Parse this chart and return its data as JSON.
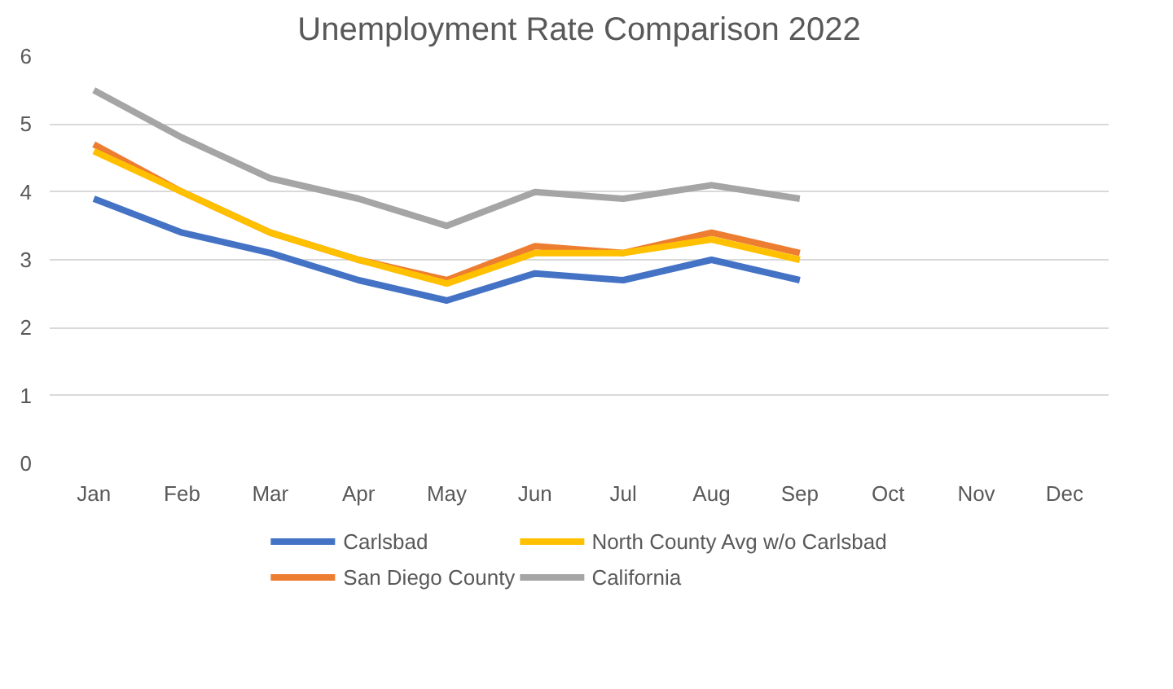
{
  "chart_data": {
    "type": "line",
    "title": "Unemployment Rate Comparison 2022",
    "categories": [
      "Jan",
      "Feb",
      "Mar",
      "Apr",
      "May",
      "Jun",
      "Jul",
      "Aug",
      "Sep",
      "Oct",
      "Nov",
      "Dec"
    ],
    "series": [
      {
        "name": "Carlsbad",
        "color": "#4472c4",
        "values": [
          3.9,
          3.4,
          3.1,
          2.7,
          2.4,
          2.8,
          2.7,
          3.0,
          2.7,
          null,
          null,
          null
        ]
      },
      {
        "name": "San Diego County",
        "color": "#ed7d31",
        "values": [
          4.7,
          4.0,
          3.4,
          3.0,
          2.7,
          3.2,
          3.1,
          3.4,
          3.1,
          null,
          null,
          null
        ]
      },
      {
        "name": "North County Avg w/o Carlsbad",
        "color": "#ffc000",
        "values": [
          4.6,
          4.0,
          3.4,
          3.0,
          2.65,
          3.1,
          3.1,
          3.3,
          3.0,
          null,
          null,
          null
        ]
      },
      {
        "name": "California",
        "color": "#a5a5a5",
        "values": [
          5.5,
          4.8,
          4.2,
          3.9,
          3.5,
          4.0,
          3.9,
          4.1,
          3.9,
          null,
          null,
          null
        ]
      }
    ],
    "ylim": [
      0,
      6
    ],
    "yticks": [
      0,
      1,
      2,
      3,
      4,
      5,
      6
    ],
    "grid": "y",
    "legend": "bottom",
    "marker": "none",
    "line_style": "solid"
  }
}
